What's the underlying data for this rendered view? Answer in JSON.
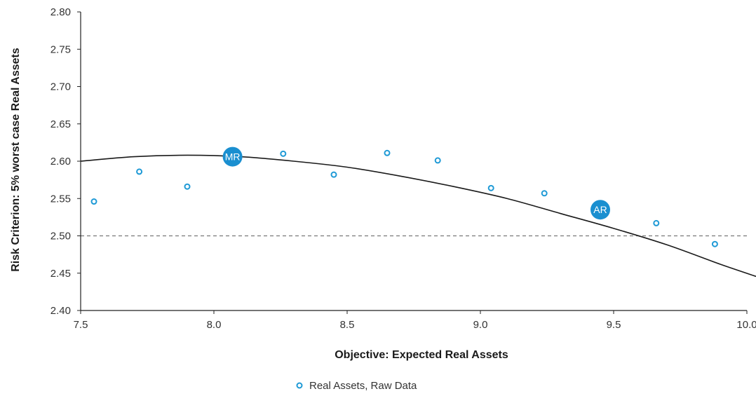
{
  "chart_data": {
    "type": "scatter",
    "title": "",
    "xlabel": "Objective: Expected Real Assets",
    "ylabel": "Risk Criterion: 5% worst case Real Assets",
    "xlim": [
      7.5,
      10.0
    ],
    "ylim": [
      2.4,
      2.8
    ],
    "x_ticks": [
      "7.5",
      "8.0",
      "8.5",
      "9.0",
      "9.5",
      "10.0"
    ],
    "y_ticks": [
      "2.40",
      "2.45",
      "2.50",
      "2.55",
      "2.60",
      "2.65",
      "2.70",
      "2.75",
      "2.80"
    ],
    "grid": false,
    "reference_line": {
      "y": 2.5,
      "style": "dashed"
    },
    "series": [
      {
        "name": "Real Assets, Raw Data",
        "kind": "scatter",
        "points": [
          {
            "x": 7.55,
            "y": 2.546
          },
          {
            "x": 7.72,
            "y": 2.586
          },
          {
            "x": 7.9,
            "y": 2.566
          },
          {
            "x": 8.26,
            "y": 2.61
          },
          {
            "x": 8.45,
            "y": 2.582
          },
          {
            "x": 8.65,
            "y": 2.611
          },
          {
            "x": 8.84,
            "y": 2.601
          },
          {
            "x": 9.04,
            "y": 2.564
          },
          {
            "x": 9.24,
            "y": 2.557
          },
          {
            "x": 9.66,
            "y": 2.517
          },
          {
            "x": 9.88,
            "y": 2.489
          }
        ]
      },
      {
        "kind": "line",
        "points": [
          {
            "x": 7.5,
            "y": 2.6
          },
          {
            "x": 7.7,
            "y": 2.606
          },
          {
            "x": 7.9,
            "y": 2.608
          },
          {
            "x": 8.1,
            "y": 2.606
          },
          {
            "x": 8.3,
            "y": 2.6
          },
          {
            "x": 8.5,
            "y": 2.592
          },
          {
            "x": 8.7,
            "y": 2.58
          },
          {
            "x": 8.9,
            "y": 2.566
          },
          {
            "x": 9.1,
            "y": 2.55
          },
          {
            "x": 9.3,
            "y": 2.53
          },
          {
            "x": 9.5,
            "y": 2.51
          },
          {
            "x": 9.7,
            "y": 2.488
          },
          {
            "x": 9.9,
            "y": 2.462
          },
          {
            "x": 10.04,
            "y": 2.445
          }
        ]
      }
    ],
    "markers": [
      {
        "label": "MR",
        "x": 8.07,
        "y": 2.606
      },
      {
        "label": "AR",
        "x": 9.45,
        "y": 2.535
      }
    ],
    "legend": {
      "placement": "bottom-center",
      "entries": [
        "Real Assets, Raw Data"
      ]
    },
    "colors": {
      "point": "#1f9ad6",
      "marker": "#1a8fd0",
      "curve": "#1a1a1a",
      "axis": "#222222",
      "reference": "#777777"
    }
  }
}
